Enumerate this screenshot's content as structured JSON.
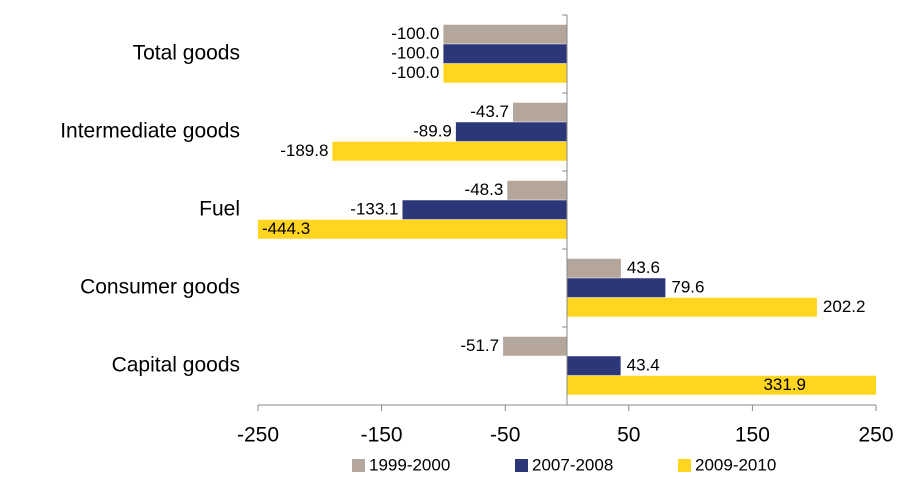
{
  "chart_data": {
    "type": "hbar",
    "categories": [
      "Total goods",
      "Intermediate goods",
      "Fuel",
      "Consumer goods",
      "Capital goods"
    ],
    "series": [
      {
        "name": "1999-2000",
        "color": "#b5a69c",
        "values": [
          -100,
          -43.7,
          -48.3,
          43.6,
          -51.7
        ],
        "value_labels": [
          "-100.0",
          "-43.7",
          "-48.3",
          "43.6",
          "-51.7"
        ]
      },
      {
        "name": "2007-2008",
        "color": "#2c3779",
        "values": [
          -100,
          -89.9,
          -133.1,
          79.6,
          43.4
        ],
        "value_labels": [
          "-100.0",
          "-89.9",
          "-133.1",
          "79.6",
          "43.4"
        ]
      },
      {
        "name": "2009-2010",
        "color": "#ffd51f",
        "values": [
          -100,
          -189.8,
          -444.3,
          202.2,
          331.9
        ],
        "value_labels": [
          "-100.0",
          "-189.8",
          "-444.3",
          "202.2",
          "331.9"
        ]
      }
    ],
    "xlim": [
      -250,
      250
    ],
    "xticks": [
      -250,
      -150,
      -50,
      50,
      150,
      250
    ],
    "legend": "bottom"
  }
}
